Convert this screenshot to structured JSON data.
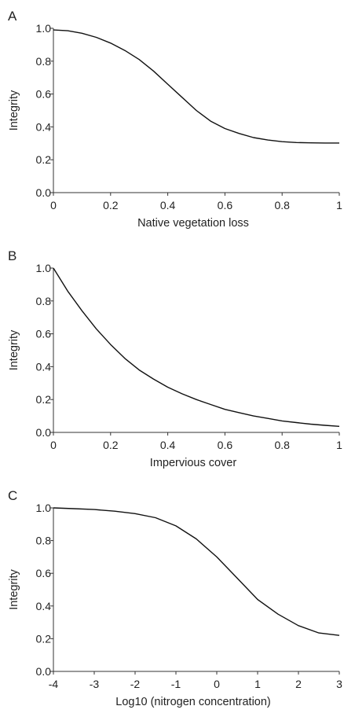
{
  "chart_data": [
    {
      "type": "line",
      "panel_label": "A",
      "xlabel": "Native vegetation loss",
      "ylabel": "Integrity",
      "xlim": [
        0,
        1
      ],
      "ylim": [
        0,
        1
      ],
      "x_ticks": [
        "0",
        "0.2",
        "0.4",
        "0.6",
        "0.8",
        "1"
      ],
      "y_ticks": [
        "0.0",
        "0.2",
        "0.4",
        "0.6",
        "0.8",
        "1.0"
      ],
      "grid": false,
      "series": [
        {
          "x": [
            0,
            0.05,
            0.1,
            0.15,
            0.2,
            0.25,
            0.3,
            0.35,
            0.4,
            0.45,
            0.5,
            0.55,
            0.6,
            0.65,
            0.7,
            0.75,
            0.8,
            0.85,
            0.9,
            0.95,
            1.0
          ],
          "y": [
            0.99,
            0.985,
            0.97,
            0.945,
            0.91,
            0.865,
            0.81,
            0.74,
            0.66,
            0.58,
            0.5,
            0.435,
            0.39,
            0.36,
            0.335,
            0.32,
            0.31,
            0.305,
            0.303,
            0.302,
            0.302
          ]
        }
      ]
    },
    {
      "type": "line",
      "panel_label": "B",
      "xlabel": "Impervious cover",
      "ylabel": "Integrity",
      "xlim": [
        0,
        1
      ],
      "ylim": [
        0,
        1
      ],
      "x_ticks": [
        "0",
        "0.2",
        "0.4",
        "0.6",
        "0.8",
        "1"
      ],
      "y_ticks": [
        "0.0",
        "0.2",
        "0.4",
        "0.6",
        "0.8",
        "1.0"
      ],
      "grid": false,
      "series": [
        {
          "x": [
            0,
            0.05,
            0.1,
            0.15,
            0.2,
            0.25,
            0.3,
            0.35,
            0.4,
            0.45,
            0.5,
            0.55,
            0.6,
            0.65,
            0.7,
            0.75,
            0.8,
            0.85,
            0.9,
            0.95,
            1.0
          ],
          "y": [
            1.0,
            0.86,
            0.74,
            0.63,
            0.535,
            0.45,
            0.38,
            0.325,
            0.275,
            0.235,
            0.2,
            0.17,
            0.14,
            0.12,
            0.1,
            0.085,
            0.07,
            0.06,
            0.05,
            0.043,
            0.037
          ]
        }
      ]
    },
    {
      "type": "line",
      "panel_label": "C",
      "xlabel": "Log10 (nitrogen concentration)",
      "ylabel": "Integrity",
      "xlim": [
        -4,
        3
      ],
      "ylim": [
        0,
        1
      ],
      "x_ticks": [
        "-4",
        "-3",
        "-2",
        "-1",
        "0",
        "1",
        "2",
        "3"
      ],
      "y_ticks": [
        "0.0",
        "0.2",
        "0.4",
        "0.6",
        "0.8",
        "1.0"
      ],
      "grid": false,
      "series": [
        {
          "x": [
            -4,
            -3.5,
            -3,
            -2.5,
            -2,
            -1.5,
            -1,
            -0.5,
            0,
            0.5,
            1,
            1.5,
            2,
            2.5,
            3
          ],
          "y": [
            1.0,
            0.995,
            0.99,
            0.98,
            0.965,
            0.94,
            0.89,
            0.81,
            0.7,
            0.57,
            0.44,
            0.35,
            0.28,
            0.235,
            0.22
          ]
        }
      ]
    }
  ]
}
